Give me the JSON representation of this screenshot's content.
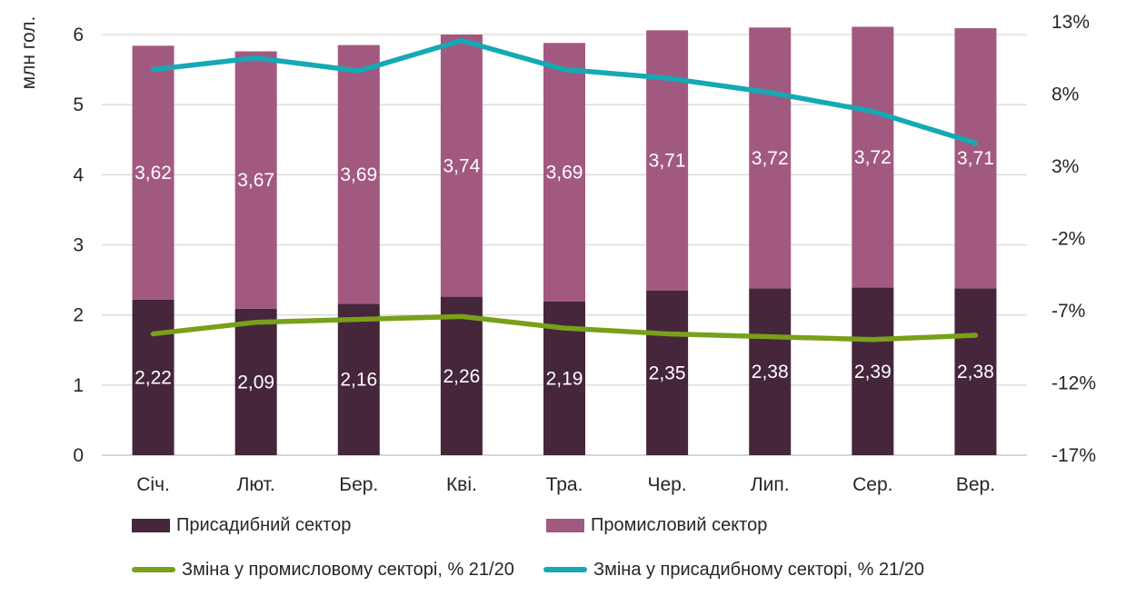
{
  "chart_data": {
    "type": "combo-stacked-bar-line",
    "title": "",
    "categories": [
      "Січ.",
      "Лют.",
      "Бер.",
      "Кві.",
      "Тра.",
      "Чер.",
      "Лип.",
      "Сер.",
      "Вер."
    ],
    "left_axis": {
      "title": "млн гол.",
      "tick_labels": [
        "6",
        "5",
        "4",
        "3",
        "2",
        "1",
        "0"
      ],
      "range": [
        0,
        6
      ]
    },
    "right_axis": {
      "tick_labels": [
        "13%",
        "8%",
        "3%",
        "-2%",
        "-7%",
        "-12%",
        "-17%"
      ],
      "range": [
        -17,
        13
      ]
    },
    "bar_series": [
      {
        "name": "Присадибний сектор",
        "color": "#45263b",
        "values": [
          2.22,
          2.09,
          2.16,
          2.26,
          2.19,
          2.35,
          2.38,
          2.39,
          2.38
        ],
        "labels": [
          "2,22",
          "2,09",
          "2,16",
          "2,26",
          "2,19",
          "2,35",
          "2,38",
          "2,39",
          "2,38"
        ]
      },
      {
        "name": "Промисловий сектор",
        "color": "#a25980",
        "values": [
          3.62,
          3.67,
          3.69,
          3.74,
          3.69,
          3.71,
          3.72,
          3.72,
          3.71
        ],
        "labels": [
          "3,62",
          "3,67",
          "3,69",
          "3,74",
          "3,69",
          "3,71",
          "3,72",
          "3,72",
          "3,71"
        ]
      }
    ],
    "line_series": [
      {
        "name": "Зміна у промисловому секторі, % 21/20",
        "color": "#78a019",
        "axis": "right",
        "values": [
          -8.6,
          -7.8,
          -7.6,
          -7.4,
          -8.2,
          -8.6,
          -8.8,
          -9.0,
          -8.7
        ]
      },
      {
        "name": "Зміна у присадибному секторі, % 21/20",
        "color": "#14a9b4",
        "axis": "right",
        "values": [
          9.7,
          10.5,
          9.6,
          11.7,
          9.7,
          9.1,
          8.1,
          6.8,
          4.6
        ]
      }
    ],
    "grid": true,
    "grid_color": "#d9d9d9",
    "baseline_color": "#bfbfbf",
    "bar_label_color": "#ffffff",
    "legend_position": "bottom"
  }
}
